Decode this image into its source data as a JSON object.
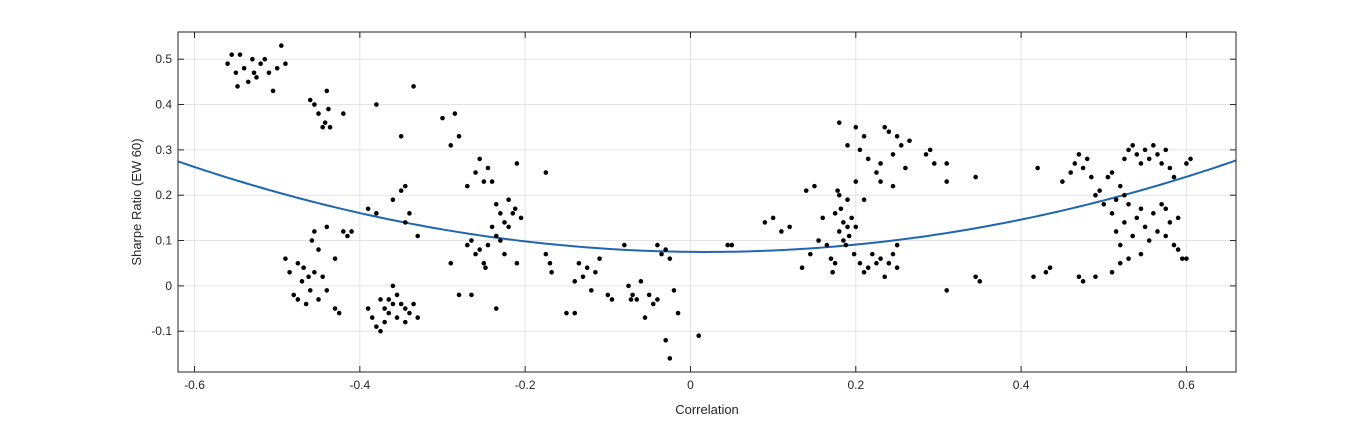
{
  "chart_data": {
    "type": "scatter",
    "title": "",
    "xlabel": "Correlation",
    "ylabel": "Sharpe Ratio (EW 60)",
    "xlim": [
      -0.62,
      0.66
    ],
    "ylim": [
      -0.19,
      0.56
    ],
    "x_ticks": [
      -0.6,
      -0.4,
      -0.2,
      0,
      0.2,
      0.4,
      0.6
    ],
    "y_ticks": [
      -0.1,
      0,
      0.1,
      0.2,
      0.3,
      0.4,
      0.5
    ],
    "x_tick_labels": [
      "-0.6",
      "-0.4",
      "-0.2",
      "0",
      "0.2",
      "0.4",
      "0.6"
    ],
    "y_tick_labels": [
      "-0.1",
      "0",
      "0.1",
      "0.2",
      "0.3",
      "0.4",
      "0.5"
    ],
    "grid": true,
    "colors": {
      "points": "#000000",
      "fit_line": "#1f66b0",
      "grid": "#e3e3e3",
      "axis": "#262626"
    },
    "series": [
      {
        "kind": "scatter",
        "points": [
          [
            -0.56,
            0.49
          ],
          [
            -0.555,
            0.51
          ],
          [
            -0.55,
            0.47
          ],
          [
            -0.545,
            0.51
          ],
          [
            -0.54,
            0.48
          ],
          [
            -0.535,
            0.45
          ],
          [
            -0.53,
            0.5
          ],
          [
            -0.525,
            0.46
          ],
          [
            -0.52,
            0.49
          ],
          [
            -0.515,
            0.5
          ],
          [
            -0.51,
            0.47
          ],
          [
            -0.505,
            0.43
          ],
          [
            -0.5,
            0.48
          ],
          [
            -0.495,
            0.53
          ],
          [
            -0.49,
            0.49
          ],
          [
            -0.548,
            0.44
          ],
          [
            -0.528,
            0.47
          ],
          [
            -0.46,
            0.41
          ],
          [
            -0.455,
            0.4
          ],
          [
            -0.45,
            0.38
          ],
          [
            -0.445,
            0.35
          ],
          [
            -0.44,
            0.43
          ],
          [
            -0.438,
            0.39
          ],
          [
            -0.442,
            0.36
          ],
          [
            -0.42,
            0.38
          ],
          [
            -0.436,
            0.35
          ],
          [
            -0.38,
            0.4
          ],
          [
            -0.335,
            0.44
          ],
          [
            -0.35,
            0.33
          ],
          [
            -0.35,
            0.21
          ],
          [
            -0.345,
            0.22
          ],
          [
            -0.36,
            0.19
          ],
          [
            -0.34,
            0.16
          ],
          [
            -0.345,
            0.14
          ],
          [
            -0.33,
            0.11
          ],
          [
            -0.39,
            0.17
          ],
          [
            -0.38,
            0.16
          ],
          [
            -0.455,
            0.12
          ],
          [
            -0.45,
            0.08
          ],
          [
            -0.44,
            0.13
          ],
          [
            -0.43,
            0.06
          ],
          [
            -0.42,
            0.12
          ],
          [
            -0.415,
            0.11
          ],
          [
            -0.41,
            0.12
          ],
          [
            -0.458,
            0.1
          ],
          [
            -0.49,
            0.06
          ],
          [
            -0.485,
            0.03
          ],
          [
            -0.48,
            -0.02
          ],
          [
            -0.475,
            0.05
          ],
          [
            -0.47,
            0.01
          ],
          [
            -0.465,
            -0.04
          ],
          [
            -0.462,
            0.02
          ],
          [
            -0.46,
            -0.01
          ],
          [
            -0.455,
            0.03
          ],
          [
            -0.45,
            -0.03
          ],
          [
            -0.445,
            0.02
          ],
          [
            -0.44,
            -0.01
          ],
          [
            -0.43,
            -0.05
          ],
          [
            -0.425,
            -0.06
          ],
          [
            -0.475,
            -0.03
          ],
          [
            -0.468,
            0.04
          ],
          [
            -0.39,
            -0.05
          ],
          [
            -0.385,
            -0.07
          ],
          [
            -0.38,
            -0.09
          ],
          [
            -0.375,
            -0.1
          ],
          [
            -0.37,
            -0.05
          ],
          [
            -0.365,
            -0.03
          ],
          [
            -0.36,
            0.0
          ],
          [
            -0.355,
            -0.02
          ],
          [
            -0.35,
            -0.04
          ],
          [
            -0.345,
            -0.08
          ],
          [
            -0.34,
            -0.06
          ],
          [
            -0.335,
            -0.04
          ],
          [
            -0.33,
            -0.07
          ],
          [
            -0.365,
            -0.06
          ],
          [
            -0.37,
            -0.08
          ],
          [
            -0.355,
            -0.07
          ],
          [
            -0.36,
            -0.04
          ],
          [
            -0.345,
            -0.05
          ],
          [
            -0.375,
            -0.03
          ],
          [
            -0.3,
            0.37
          ],
          [
            -0.285,
            0.38
          ],
          [
            -0.28,
            0.33
          ],
          [
            -0.29,
            0.31
          ],
          [
            -0.27,
            0.22
          ],
          [
            -0.26,
            0.25
          ],
          [
            -0.255,
            0.28
          ],
          [
            -0.25,
            0.23
          ],
          [
            -0.245,
            0.26
          ],
          [
            -0.24,
            0.23
          ],
          [
            -0.235,
            0.18
          ],
          [
            -0.23,
            0.16
          ],
          [
            -0.225,
            0.14
          ],
          [
            -0.22,
            0.19
          ],
          [
            -0.215,
            0.16
          ],
          [
            -0.21,
            0.27
          ],
          [
            -0.205,
            0.15
          ],
          [
            -0.212,
            0.17
          ],
          [
            -0.27,
            0.09
          ],
          [
            -0.265,
            0.1
          ],
          [
            -0.26,
            0.07
          ],
          [
            -0.255,
            0.08
          ],
          [
            -0.25,
            0.05
          ],
          [
            -0.245,
            0.09
          ],
          [
            -0.24,
            0.13
          ],
          [
            -0.235,
            0.11
          ],
          [
            -0.23,
            0.1
          ],
          [
            -0.225,
            0.07
          ],
          [
            -0.22,
            0.13
          ],
          [
            -0.21,
            0.05
          ],
          [
            -0.248,
            0.04
          ],
          [
            -0.29,
            0.05
          ],
          [
            -0.28,
            -0.02
          ],
          [
            -0.265,
            -0.02
          ],
          [
            -0.235,
            -0.05
          ],
          [
            -0.175,
            0.25
          ],
          [
            -0.175,
            0.07
          ],
          [
            -0.17,
            0.05
          ],
          [
            -0.168,
            0.03
          ],
          [
            -0.15,
            -0.06
          ],
          [
            -0.14,
            0.01
          ],
          [
            -0.135,
            0.05
          ],
          [
            -0.13,
            0.02
          ],
          [
            -0.125,
            0.04
          ],
          [
            -0.12,
            -0.01
          ],
          [
            -0.115,
            0.03
          ],
          [
            -0.14,
            -0.06
          ],
          [
            -0.11,
            0.06
          ],
          [
            -0.1,
            -0.02
          ],
          [
            -0.095,
            -0.03
          ],
          [
            -0.08,
            0.09
          ],
          [
            -0.075,
            0.0
          ],
          [
            -0.07,
            -0.02
          ],
          [
            -0.065,
            -0.03
          ],
          [
            -0.06,
            0.01
          ],
          [
            -0.055,
            -0.07
          ],
          [
            -0.05,
            -0.02
          ],
          [
            -0.045,
            -0.04
          ],
          [
            -0.04,
            -0.03
          ],
          [
            -0.035,
            0.07
          ],
          [
            -0.03,
            0.08
          ],
          [
            -0.025,
            0.06
          ],
          [
            -0.02,
            -0.01
          ],
          [
            -0.03,
            -0.12
          ],
          [
            -0.025,
            -0.16
          ],
          [
            -0.015,
            -0.06
          ],
          [
            -0.04,
            0.09
          ],
          [
            -0.072,
            -0.03
          ],
          [
            0.01,
            -0.11
          ],
          [
            0.045,
            0.09
          ],
          [
            0.05,
            0.09
          ],
          [
            0.09,
            0.14
          ],
          [
            0.1,
            0.15
          ],
          [
            0.11,
            0.12
          ],
          [
            0.12,
            0.13
          ],
          [
            0.135,
            0.04
          ],
          [
            0.14,
            0.21
          ],
          [
            0.145,
            0.07
          ],
          [
            0.15,
            0.22
          ],
          [
            0.155,
            0.1
          ],
          [
            0.16,
            0.15
          ],
          [
            0.165,
            0.09
          ],
          [
            0.17,
            0.06
          ],
          [
            0.175,
            0.05
          ],
          [
            0.172,
            0.03
          ],
          [
            0.175,
            0.16
          ],
          [
            0.178,
            0.21
          ],
          [
            0.18,
            0.12
          ],
          [
            0.182,
            0.17
          ],
          [
            0.185,
            0.14
          ],
          [
            0.188,
            0.09
          ],
          [
            0.19,
            0.19
          ],
          [
            0.192,
            0.11
          ],
          [
            0.195,
            0.15
          ],
          [
            0.198,
            0.07
          ],
          [
            0.2,
            0.13
          ],
          [
            0.185,
            0.1
          ],
          [
            0.19,
            0.13
          ],
          [
            0.18,
            0.2
          ],
          [
            0.18,
            0.36
          ],
          [
            0.19,
            0.31
          ],
          [
            0.2,
            0.35
          ],
          [
            0.205,
            0.3
          ],
          [
            0.21,
            0.33
          ],
          [
            0.215,
            0.28
          ],
          [
            0.2,
            0.23
          ],
          [
            0.21,
            0.19
          ],
          [
            0.205,
            0.05
          ],
          [
            0.21,
            0.03
          ],
          [
            0.215,
            0.04
          ],
          [
            0.22,
            0.07
          ],
          [
            0.225,
            0.05
          ],
          [
            0.23,
            0.06
          ],
          [
            0.235,
            0.02
          ],
          [
            0.24,
            0.05
          ],
          [
            0.245,
            0.07
          ],
          [
            0.25,
            0.04
          ],
          [
            0.225,
            0.25
          ],
          [
            0.23,
            0.23
          ],
          [
            0.235,
            0.35
          ],
          [
            0.24,
            0.34
          ],
          [
            0.245,
            0.29
          ],
          [
            0.25,
            0.33
          ],
          [
            0.255,
            0.31
          ],
          [
            0.26,
            0.26
          ],
          [
            0.265,
            0.32
          ],
          [
            0.245,
            0.22
          ],
          [
            0.23,
            0.27
          ],
          [
            0.25,
            0.09
          ],
          [
            0.285,
            0.29
          ],
          [
            0.29,
            0.3
          ],
          [
            0.295,
            0.27
          ],
          [
            0.31,
            0.23
          ],
          [
            0.31,
            0.27
          ],
          [
            0.31,
            -0.01
          ],
          [
            0.345,
            0.24
          ],
          [
            0.345,
            0.02
          ],
          [
            0.35,
            0.01
          ],
          [
            0.415,
            0.02
          ],
          [
            0.42,
            0.26
          ],
          [
            0.43,
            0.03
          ],
          [
            0.435,
            0.04
          ],
          [
            0.45,
            0.23
          ],
          [
            0.46,
            0.25
          ],
          [
            0.465,
            0.27
          ],
          [
            0.47,
            0.29
          ],
          [
            0.475,
            0.26
          ],
          [
            0.48,
            0.28
          ],
          [
            0.485,
            0.24
          ],
          [
            0.47,
            0.02
          ],
          [
            0.475,
            0.01
          ],
          [
            0.49,
            0.02
          ],
          [
            0.49,
            0.2
          ],
          [
            0.495,
            0.21
          ],
          [
            0.5,
            0.18
          ],
          [
            0.505,
            0.24
          ],
          [
            0.51,
            0.25
          ],
          [
            0.515,
            0.19
          ],
          [
            0.52,
            0.22
          ],
          [
            0.525,
            0.28
          ],
          [
            0.53,
            0.3
          ],
          [
            0.535,
            0.31
          ],
          [
            0.54,
            0.29
          ],
          [
            0.545,
            0.27
          ],
          [
            0.55,
            0.3
          ],
          [
            0.555,
            0.28
          ],
          [
            0.56,
            0.31
          ],
          [
            0.565,
            0.29
          ],
          [
            0.57,
            0.27
          ],
          [
            0.575,
            0.3
          ],
          [
            0.58,
            0.26
          ],
          [
            0.585,
            0.24
          ],
          [
            0.51,
            0.16
          ],
          [
            0.515,
            0.12
          ],
          [
            0.52,
            0.09
          ],
          [
            0.525,
            0.14
          ],
          [
            0.53,
            0.18
          ],
          [
            0.535,
            0.11
          ],
          [
            0.54,
            0.15
          ],
          [
            0.545,
            0.07
          ],
          [
            0.55,
            0.13
          ],
          [
            0.555,
            0.1
          ],
          [
            0.56,
            0.16
          ],
          [
            0.565,
            0.12
          ],
          [
            0.57,
            0.18
          ],
          [
            0.575,
            0.11
          ],
          [
            0.58,
            0.14
          ],
          [
            0.585,
            0.09
          ],
          [
            0.59,
            0.15
          ],
          [
            0.595,
            0.06
          ],
          [
            0.6,
            0.06
          ],
          [
            0.59,
            0.08
          ],
          [
            0.6,
            0.27
          ],
          [
            0.605,
            0.28
          ],
          [
            0.51,
            0.03
          ],
          [
            0.52,
            0.05
          ],
          [
            0.53,
            0.06
          ],
          [
            0.545,
            0.17
          ],
          [
            0.525,
            0.2
          ],
          [
            0.575,
            0.17
          ]
        ]
      },
      {
        "kind": "fit_line",
        "equation": "y = 0.49*x^2 - 0.018*x + 0.075"
      }
    ]
  }
}
